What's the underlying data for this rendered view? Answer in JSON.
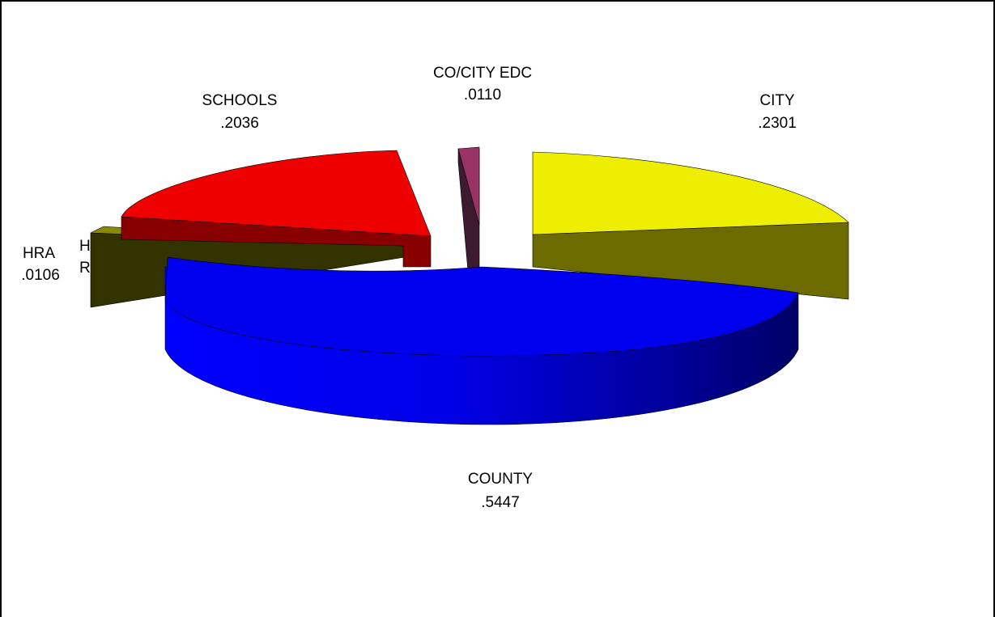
{
  "chart_data": {
    "type": "pie",
    "variant": "3d-exploded",
    "slices": [
      {
        "label": "COUNTY",
        "value": ".5447",
        "numeric": 0.5447,
        "color": "#0000ee"
      },
      {
        "label": "CITY",
        "value": ".2301",
        "numeric": 0.2301,
        "color": "#eeee00"
      },
      {
        "label": "CO/CITY EDC",
        "value": ".0110",
        "numeric": 0.011,
        "color": "#993366"
      },
      {
        "label": "SCHOOLS",
        "value": ".2036",
        "numeric": 0.2036,
        "color": "#ee0000"
      },
      {
        "label": "HRA",
        "value": ".0106",
        "numeric": 0.0106,
        "color": "#666600"
      }
    ],
    "truncated_label": {
      "line1": "H",
      "line2": "R"
    },
    "legend": "none",
    "grid": false
  }
}
